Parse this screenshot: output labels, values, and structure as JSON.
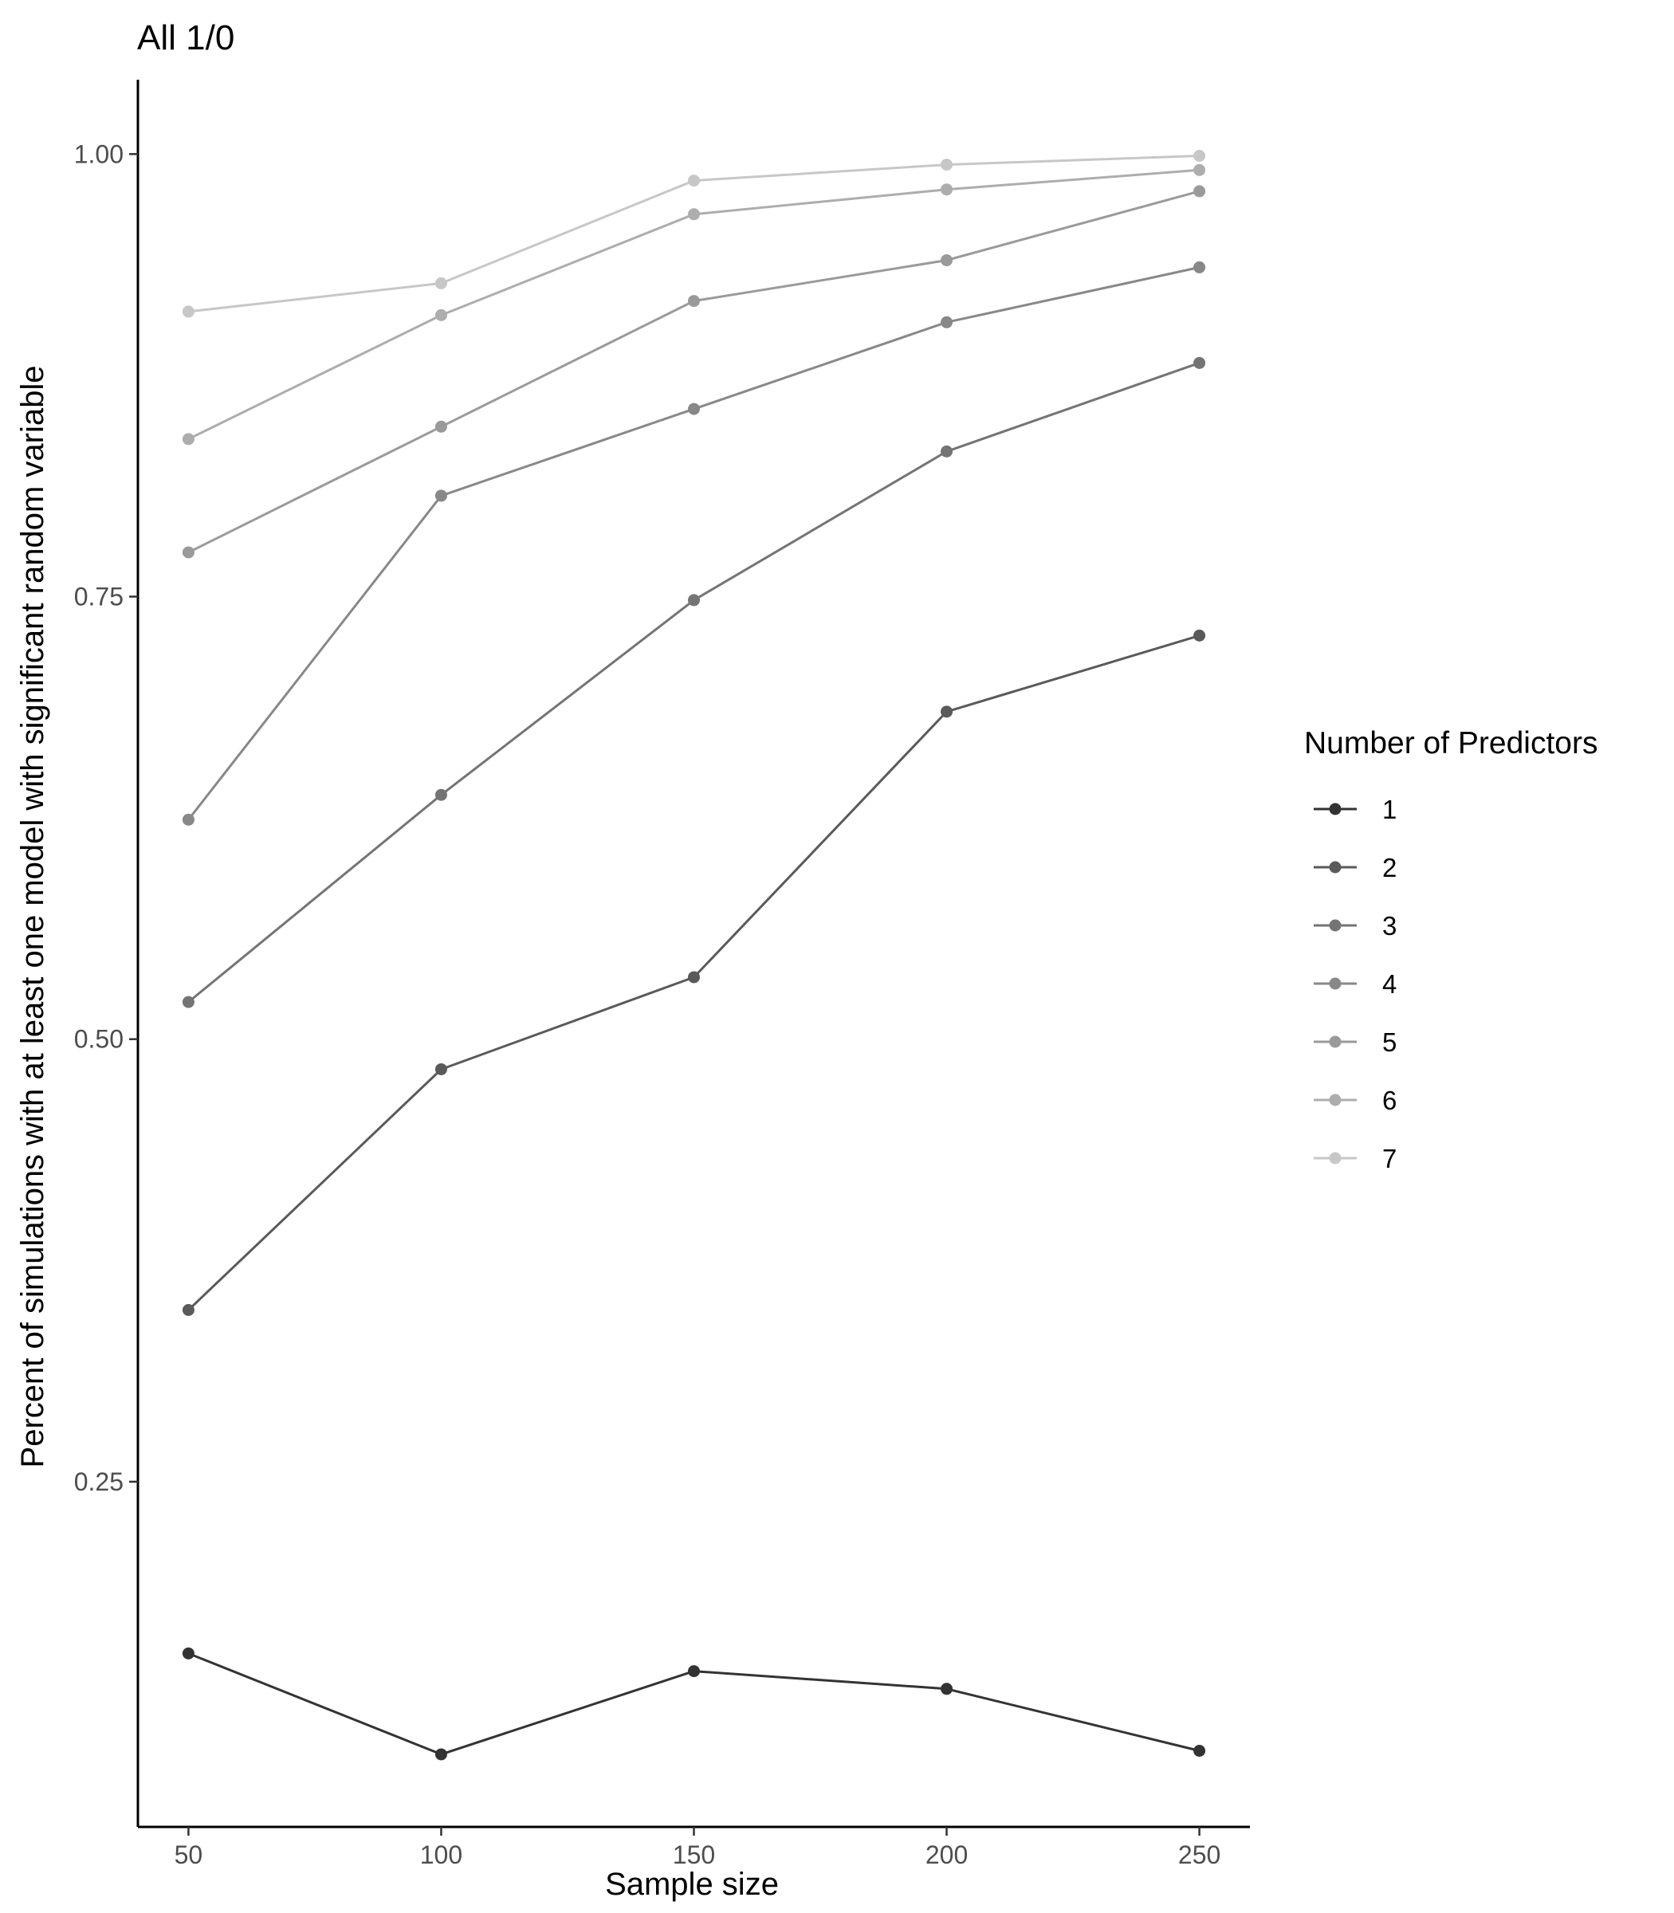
{
  "chart_data": {
    "type": "line",
    "title": "All 1/0",
    "xlabel": "Sample size",
    "ylabel": "Percent of simulations with at least one model with significant random variable",
    "x": [
      50,
      100,
      150,
      200,
      250
    ],
    "x_ticks": [
      "50",
      "100",
      "150",
      "200",
      "250"
    ],
    "y_ticks": [
      "0.25",
      "0.50",
      "0.75",
      "1.00"
    ],
    "xlim": [
      40,
      260
    ],
    "ylim": [
      0.055,
      1.042
    ],
    "grid": false,
    "legend_title": "Number of Predictors",
    "legend_position": "right",
    "series": [
      {
        "name": "1",
        "color": "#333333",
        "values": [
          0.153,
          0.096,
          0.143,
          0.133,
          0.098
        ]
      },
      {
        "name": "2",
        "color": "#5a5a5a",
        "values": [
          0.347,
          0.483,
          0.535,
          0.685,
          0.728
        ]
      },
      {
        "name": "3",
        "color": "#747474",
        "values": [
          0.521,
          0.638,
          0.748,
          0.832,
          0.882
        ]
      },
      {
        "name": "4",
        "color": "#888888",
        "values": [
          0.624,
          0.807,
          0.856,
          0.905,
          0.936
        ]
      },
      {
        "name": "5",
        "color": "#9a9a9a",
        "values": [
          0.775,
          0.846,
          0.917,
          0.94,
          0.979
        ]
      },
      {
        "name": "6",
        "color": "#adadad",
        "values": [
          0.839,
          0.909,
          0.966,
          0.98,
          0.991
        ]
      },
      {
        "name": "7",
        "color": "#c7c7c7",
        "values": [
          0.911,
          0.927,
          0.985,
          0.994,
          0.999
        ]
      }
    ]
  }
}
